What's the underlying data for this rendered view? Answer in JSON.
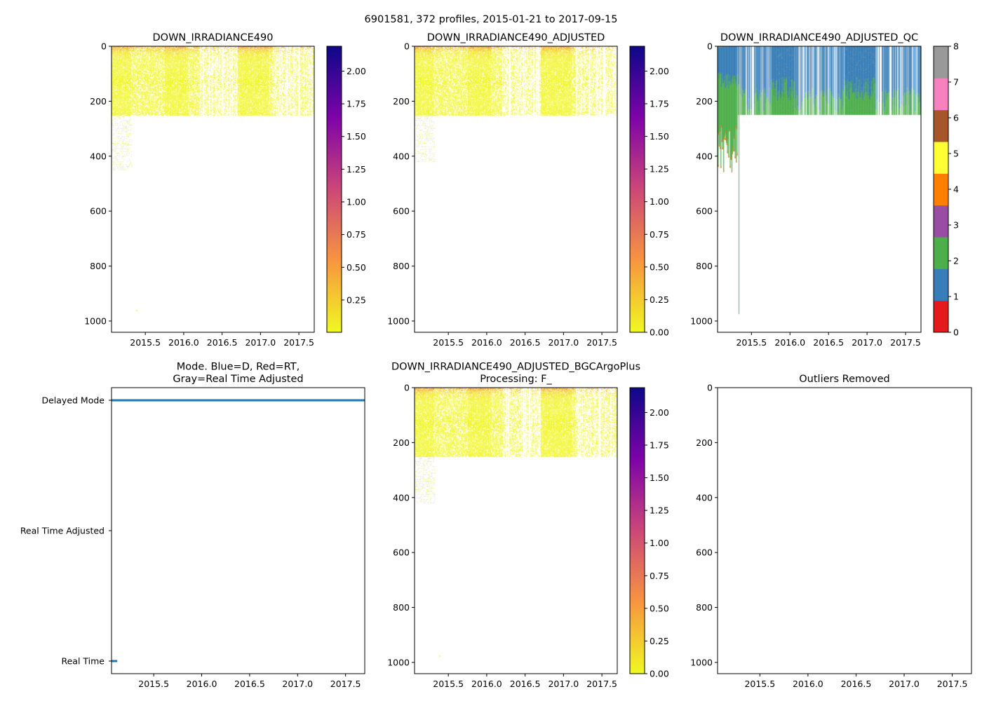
{
  "figure_title": "6901581, 372 profiles, 2015-01-21 to 2017-09-15",
  "colors": {
    "plasma_r": [
      "#f0f921",
      "#f89540",
      "#cc4778",
      "#7e03a8",
      "#0d0887"
    ],
    "qc": [
      "#e41a1c",
      "#377eb8",
      "#4daf4a",
      "#984ea3",
      "#ff7f00",
      "#ffff33",
      "#a65628",
      "#f781bf",
      "#999999"
    ],
    "mode_line": "#1f77b4"
  },
  "chart_data": [
    {
      "type": "heatmap",
      "title": [
        "DOWN_IRRADIANCE490"
      ],
      "xlim": [
        2015.06,
        2017.7
      ],
      "ylim": [
        1041,
        0
      ],
      "xticks": [
        "2015.5",
        "2016.0",
        "2016.5",
        "2017.0",
        "2017.5"
      ],
      "yticks": [
        "0",
        "200",
        "400",
        "600",
        "800",
        "1000"
      ],
      "n_profiles": 372,
      "profile_max_depth": 250,
      "early_deep_depth": 450,
      "colorbar": {
        "range": [
          0.003,
          2.19
        ],
        "ticks": [
          "0.25",
          "0.50",
          "0.75",
          "1.00",
          "1.25",
          "1.50",
          "1.75",
          "2.00"
        ]
      }
    },
    {
      "type": "heatmap",
      "title": [
        "DOWN_IRRADIANCE490_ADJUSTED"
      ],
      "xlim": [
        2015.06,
        2017.7
      ],
      "ylim": [
        1041,
        0
      ],
      "xticks": [
        "2015.5",
        "2016.0",
        "2016.5",
        "2017.0",
        "2017.5"
      ],
      "yticks": [
        "0",
        "200",
        "400",
        "600",
        "800",
        "1000"
      ],
      "n_profiles": 372,
      "profile_max_depth": 250,
      "early_deep_depth": 420,
      "colorbar": {
        "range": [
          0,
          2.19
        ],
        "ticks": [
          "0.00",
          "0.25",
          "0.50",
          "0.75",
          "1.00",
          "1.25",
          "1.50",
          "1.75",
          "2.00"
        ]
      }
    },
    {
      "type": "heatmap",
      "title": [
        "DOWN_IRRADIANCE490_ADJUSTED_QC"
      ],
      "xlim": [
        2015.06,
        2017.7
      ],
      "ylim": [
        1041,
        0
      ],
      "xticks": [
        "2015.5",
        "2016.0",
        "2016.5",
        "2017.0",
        "2017.5"
      ],
      "yticks": [
        "0",
        "200",
        "400",
        "600",
        "800",
        "1000"
      ],
      "n_profiles": 372,
      "profile_max_depth": 250,
      "deepest_profile_depth": 975,
      "colorbar": {
        "range": [
          0,
          8
        ],
        "ticks": [
          "0",
          "1",
          "2",
          "3",
          "4",
          "5",
          "6",
          "7",
          "8"
        ],
        "discrete": true
      }
    },
    {
      "type": "line",
      "title": [
        "Mode. Blue=D, Red=RT,",
        "Gray=Real Time Adjusted"
      ],
      "xlim": [
        2015.06,
        2017.7
      ],
      "xticks": [
        "2015.5",
        "2016.0",
        "2016.5",
        "2017.0",
        "2017.5"
      ],
      "ycategories": [
        "Real Time",
        "Real Time Adjusted",
        "Delayed Mode"
      ],
      "series": [
        {
          "name": "Delayed Mode",
          "x": [
            2015.06,
            2017.7
          ],
          "level": 2
        },
        {
          "name": "Real Time",
          "x": [
            2015.06,
            2015.12
          ],
          "level": 0
        }
      ]
    },
    {
      "type": "heatmap",
      "title": [
        "DOWN_IRRADIANCE490_ADJUSTED_BGCArgoPlus",
        "Processing: F_"
      ],
      "xlim": [
        2015.06,
        2017.7
      ],
      "ylim": [
        1041,
        0
      ],
      "xticks": [
        "2015.5",
        "2016.0",
        "2016.5",
        "2017.0",
        "2017.5"
      ],
      "yticks": [
        "0",
        "200",
        "400",
        "600",
        "800",
        "1000"
      ],
      "n_profiles": 372,
      "profile_max_depth": 250,
      "early_deep_depth": 420,
      "colorbar": {
        "range": [
          0,
          2.19
        ],
        "ticks": [
          "0.00",
          "0.25",
          "0.50",
          "0.75",
          "1.00",
          "1.25",
          "1.50",
          "1.75",
          "2.00"
        ]
      }
    },
    {
      "type": "heatmap",
      "title": [
        "Outliers Removed"
      ],
      "xlim": [
        2015.06,
        2017.7
      ],
      "ylim": [
        1041,
        0
      ],
      "xticks": [
        "2015.5",
        "2016.0",
        "2016.5",
        "2017.0",
        "2017.5"
      ],
      "yticks": [
        "0",
        "200",
        "400",
        "600",
        "800",
        "1000"
      ],
      "n_profiles": 0
    }
  ]
}
